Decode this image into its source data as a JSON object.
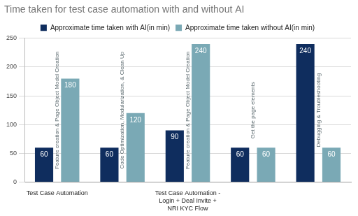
{
  "chart_data": {
    "type": "bar",
    "title": "Time taken for test case automation with and without AI",
    "categories": [
      "Test Case Automation",
      null,
      "Test Case Automation - Login + Deal Invite + NRI KYC Flow",
      null,
      null
    ],
    "series": [
      {
        "name": "Approximate time taken with AI(in min)",
        "color": "#0f2d5e",
        "values": [
          60,
          60,
          90,
          60,
          240
        ]
      },
      {
        "name": "Approximate time taken without AI(in min)",
        "color": "#7aa9b5",
        "values": [
          180,
          120,
          240,
          60,
          60
        ]
      }
    ],
    "annotations": [
      "Feature creation & Page Object Model Creation",
      "Code Optimization, Modularization, & Clean Up",
      "Feature creation & Page Object Model Creation",
      "Get the page elements",
      "Debugging & Troubleshooting"
    ],
    "ylim": [
      0,
      250
    ],
    "yticks": [
      0,
      50,
      100,
      150,
      200,
      250
    ],
    "grid": true,
    "legend": "top",
    "data_labels": true
  }
}
